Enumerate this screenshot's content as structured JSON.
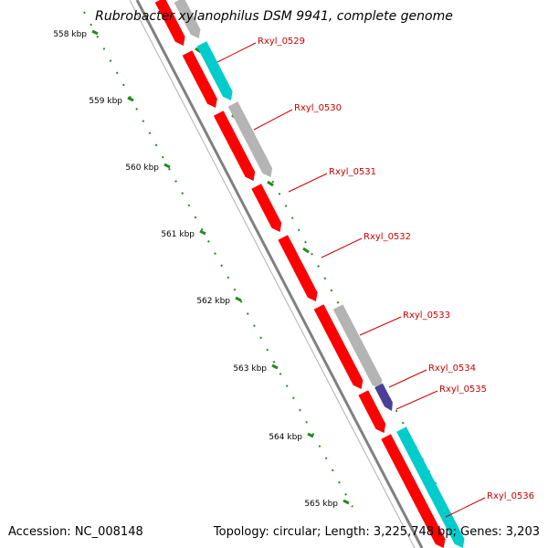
{
  "title": "Rubrobacter xylanophilus DSM 9941, complete genome",
  "accession": "Accession: NC_008148",
  "summary": "Topology: circular; Length: 3,225,748 bp; Genes: 3,203",
  "ticks": [
    "558 kbp",
    "559 kbp",
    "560 kbp",
    "561 kbp",
    "562 kbp",
    "563 kbp",
    "564 kbp",
    "565 kbp"
  ],
  "genes": [
    "Rxyl_0529",
    "Rxyl_0530",
    "Rxyl_0531",
    "Rxyl_0532",
    "Rxyl_0533",
    "Rxyl_0534",
    "Rxyl_0535",
    "Rxyl_0536"
  ],
  "colors": {
    "forward_cds": "#ff0000",
    "reverse_cds": "#00cccc",
    "other_feature": "#b4b4b4",
    "small_feature": "#4a3f99",
    "backbone": "#808080",
    "tick": "#228b22",
    "label": "#cc0000"
  }
}
